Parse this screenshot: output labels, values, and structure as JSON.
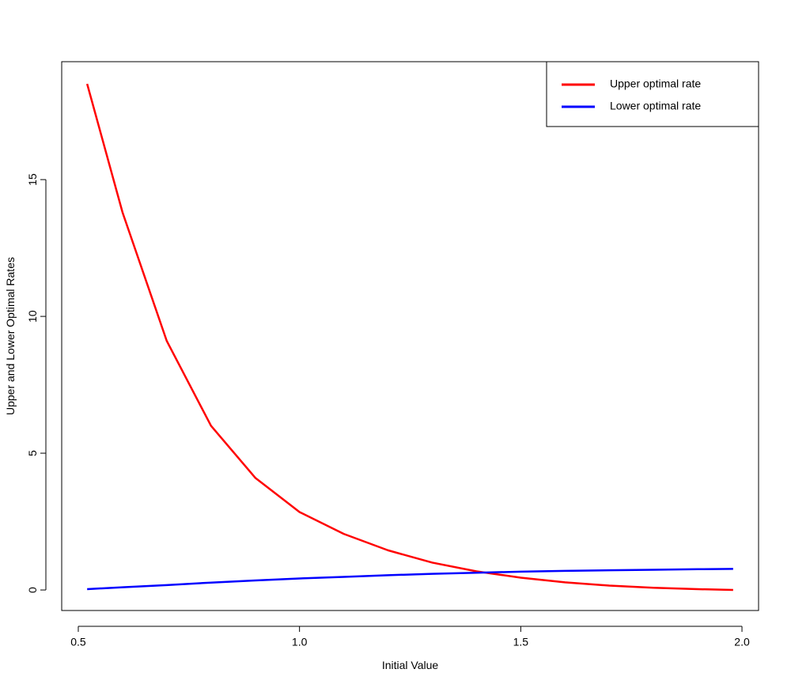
{
  "chart_data": {
    "type": "line",
    "xlabel": "Initial Value",
    "ylabel": "Upper and Lower Optimal Rates",
    "x": [
      0.52,
      0.6,
      0.7,
      0.8,
      0.9,
      1.0,
      1.1,
      1.2,
      1.3,
      1.4,
      1.5,
      1.6,
      1.7,
      1.8,
      1.9,
      1.98
    ],
    "series": [
      {
        "name": "Upper optimal rate",
        "color": "#ff0000",
        "values": [
          18.5,
          13.8,
          9.1,
          6.0,
          4.1,
          2.85,
          2.05,
          1.45,
          1.0,
          0.68,
          0.45,
          0.28,
          0.16,
          0.08,
          0.03,
          0.0
        ]
      },
      {
        "name": "Lower optimal rate",
        "color": "#0000ff",
        "values": [
          0.03,
          0.1,
          0.18,
          0.27,
          0.35,
          0.42,
          0.48,
          0.54,
          0.59,
          0.63,
          0.67,
          0.7,
          0.72,
          0.74,
          0.76,
          0.77
        ]
      }
    ],
    "xlim": [
      0.4625,
      2.0375
    ],
    "ylim": [
      -0.75,
      19.31
    ],
    "xticks": [
      {
        "value": 0.5,
        "label": "0.5"
      },
      {
        "value": 1.0,
        "label": "1.0"
      },
      {
        "value": 1.5,
        "label": "1.5"
      },
      {
        "value": 2.0,
        "label": "2.0"
      }
    ],
    "yticks": [
      0,
      5,
      10,
      15
    ],
    "legend": "top-right"
  }
}
